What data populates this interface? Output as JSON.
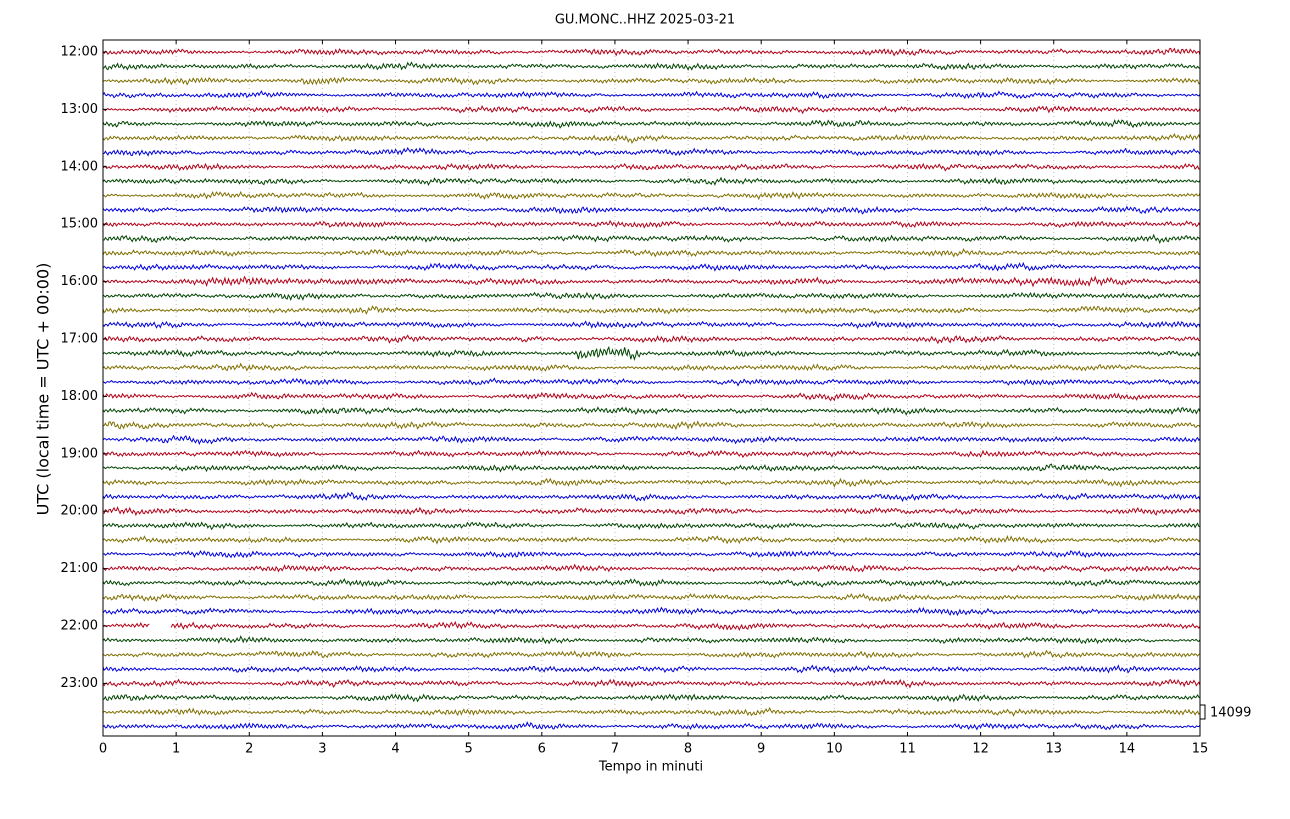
{
  "chart_data": {
    "type": "helicorder",
    "title": "GU.MONC..HHZ 2025-03-21",
    "xlabel": "Tempo in minuti",
    "ylabel": "UTC (local time = UTC + 00:00)",
    "xlim": [
      0,
      15
    ],
    "xticks": [
      0,
      1,
      2,
      3,
      4,
      5,
      6,
      7,
      8,
      9,
      10,
      11,
      12,
      13,
      14,
      15
    ],
    "yticks": [
      "12:00",
      "13:00",
      "14:00",
      "15:00",
      "16:00",
      "17:00",
      "18:00",
      "19:00",
      "20:00",
      "21:00",
      "22:00",
      "23:00"
    ],
    "colors": [
      "#b00018",
      "#004400",
      "#7f6f00",
      "#0000dd"
    ],
    "scale": 14099,
    "grid": true
  }
}
